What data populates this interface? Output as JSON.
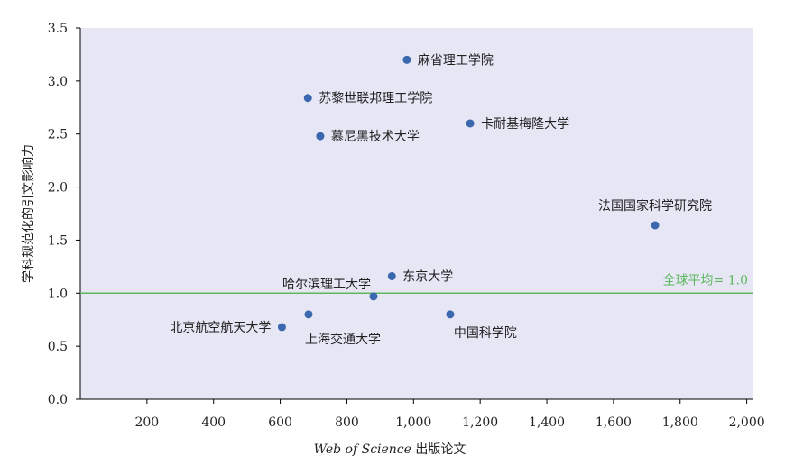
{
  "chart_data": {
    "type": "scatter",
    "xlabel_italic": "Web of Science",
    "xlabel_rest": " 出版论文",
    "ylabel": "学科规范化的引文影响力",
    "xlim": [
      0,
      2020
    ],
    "ylim": [
      0,
      3.5
    ],
    "x_ticks": [
      200,
      400,
      600,
      800,
      1000,
      1200,
      1400,
      1600,
      1800,
      2000
    ],
    "x_tick_labels": [
      "200",
      "400",
      "600",
      "800",
      "1,000",
      "1,200",
      "1,400",
      "1,600",
      "1,800",
      "2,000"
    ],
    "y_ticks": [
      0,
      0.5,
      1.0,
      1.5,
      2.0,
      2.5,
      3.0,
      3.5
    ],
    "y_tick_labels": [
      "0.0",
      "0.5",
      "1.0",
      "1.5",
      "2.0",
      "2.5",
      "3.0",
      "3.5"
    ],
    "grid": false,
    "reference_line": {
      "y": 1.0,
      "label": "全球平均= 1.0",
      "color": "#5cb85c"
    },
    "point_color": "#3a67ad",
    "plot_background": "#e6e6f5",
    "points": [
      {
        "label": "麻省理工学院",
        "x": 980,
        "y": 3.2,
        "pos": "right"
      },
      {
        "label": "苏黎世联邦理工学院",
        "x": 683,
        "y": 2.84,
        "pos": "right"
      },
      {
        "label": "卡耐基梅隆大学",
        "x": 1170,
        "y": 2.6,
        "pos": "right"
      },
      {
        "label": "慕尼黑技术大学",
        "x": 720,
        "y": 2.48,
        "pos": "right"
      },
      {
        "label": "法国国家科学研究院",
        "x": 1725,
        "y": 1.64,
        "pos": "above"
      },
      {
        "label": "东京大学",
        "x": 935,
        "y": 1.16,
        "pos": "right"
      },
      {
        "label": "哈尔滨理工大学",
        "x": 880,
        "y": 0.97,
        "pos": "above-left"
      },
      {
        "label": "上海交通大学",
        "x": 685,
        "y": 0.8,
        "pos": "below"
      },
      {
        "label": "中国科学院",
        "x": 1110,
        "y": 0.8,
        "pos": "below-right"
      },
      {
        "label": "北京航空航天大学",
        "x": 605,
        "y": 0.68,
        "pos": "left"
      }
    ]
  }
}
